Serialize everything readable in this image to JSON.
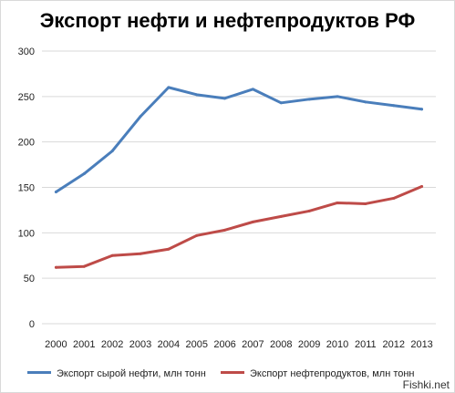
{
  "chart_data": {
    "type": "line",
    "title": "Экспорт нефти и нефтепродуктов РФ",
    "categories": [
      "2000",
      "2001",
      "2002",
      "2003",
      "2004",
      "2005",
      "2006",
      "2007",
      "2008",
      "2009",
      "2010",
      "2011",
      "2012",
      "2013"
    ],
    "ylim": [
      0,
      300
    ],
    "yticks": [
      0,
      50,
      100,
      150,
      200,
      250,
      300
    ],
    "grid": true,
    "legend_position": "bottom",
    "series": [
      {
        "name": "Экспорт сырой нефти, млн тонн",
        "color": "#4a7ebb",
        "values": [
          145,
          165,
          190,
          228,
          260,
          252,
          248,
          258,
          243,
          247,
          250,
          244,
          240,
          236
        ]
      },
      {
        "name": "Экспорт нефтепродуктов, млн тонн",
        "color": "#be4b48",
        "values": [
          62,
          63,
          75,
          77,
          82,
          97,
          103,
          112,
          118,
          124,
          133,
          132,
          138,
          151
        ]
      }
    ]
  },
  "watermark": "Fishki.net"
}
